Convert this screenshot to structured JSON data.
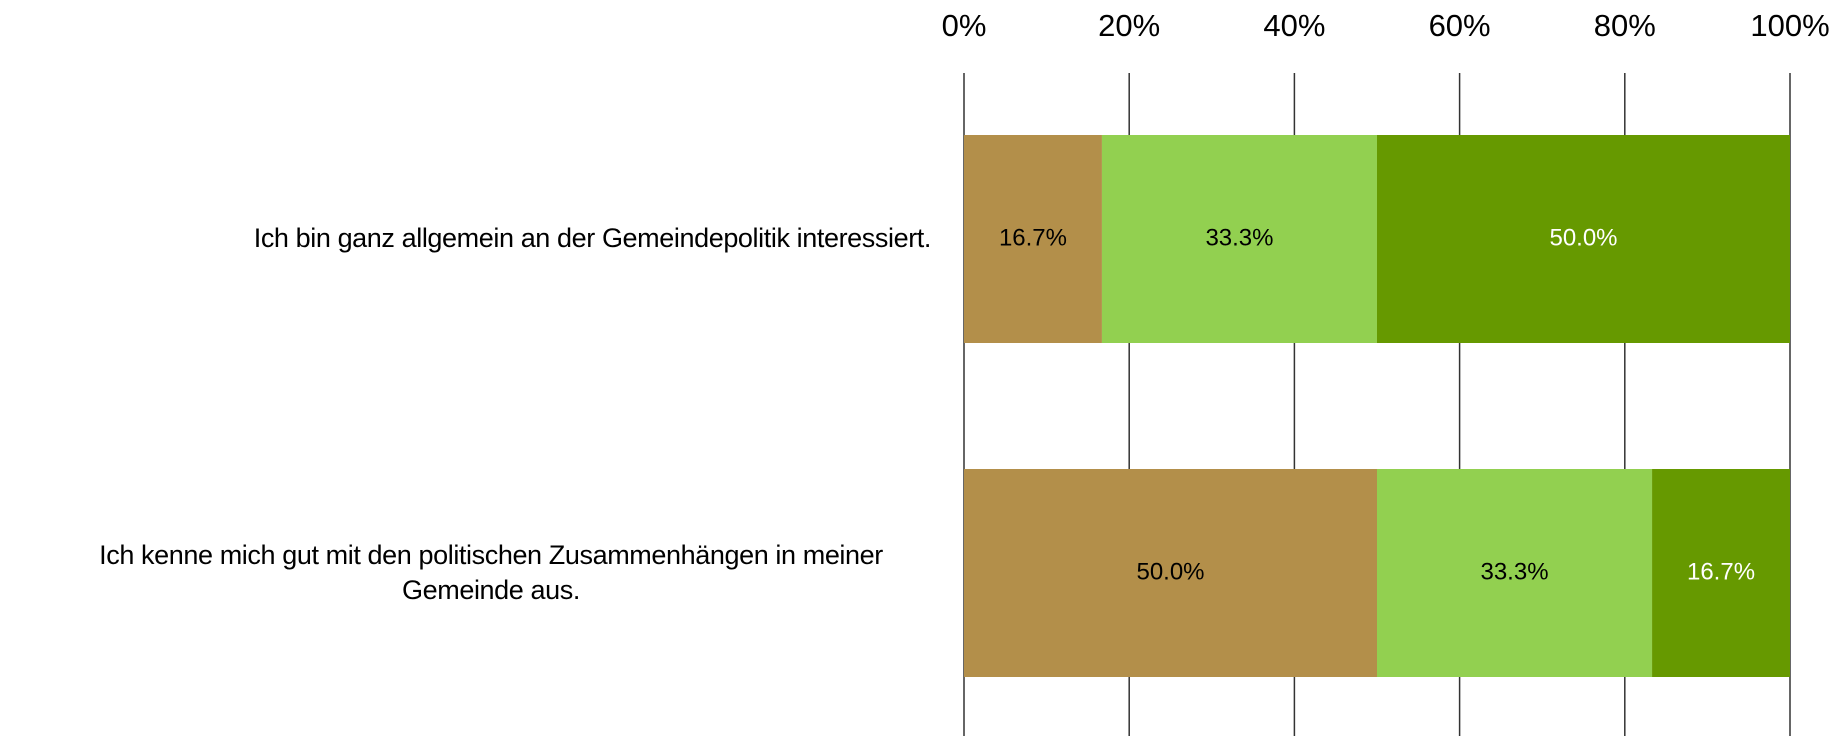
{
  "chart_data": {
    "type": "stacked-bar-horizontal",
    "categories": [
      "Ich bin ganz allgemein an der Gemeindepolitik interessiert.",
      "Ich kenne mich gut mit den politischen Zusammenhängen in meiner Gemeinde aus."
    ],
    "series": [
      {
        "color": "#b38f4a",
        "label_color": "#000000",
        "values": [
          16.7,
          50.0
        ],
        "value_labels": [
          "16.7%",
          "50.0%"
        ]
      },
      {
        "color": "#92d050",
        "label_color": "#000000",
        "values": [
          33.3,
          33.3
        ],
        "value_labels": [
          "33.3%",
          "33.3%"
        ]
      },
      {
        "color": "#669900",
        "label_color": "#ffffff",
        "values": [
          50.0,
          16.7
        ],
        "value_labels": [
          "50.0%",
          "16.7%"
        ]
      }
    ],
    "xlim": [
      0,
      100
    ],
    "xticks": [
      {
        "value": 0,
        "label": "0%"
      },
      {
        "value": 20,
        "label": "20%"
      },
      {
        "value": 40,
        "label": "40%"
      },
      {
        "value": 60,
        "label": "60%"
      },
      {
        "value": 80,
        "label": "80%"
      },
      {
        "value": 100,
        "label": "100%"
      }
    ],
    "grid": true
  }
}
